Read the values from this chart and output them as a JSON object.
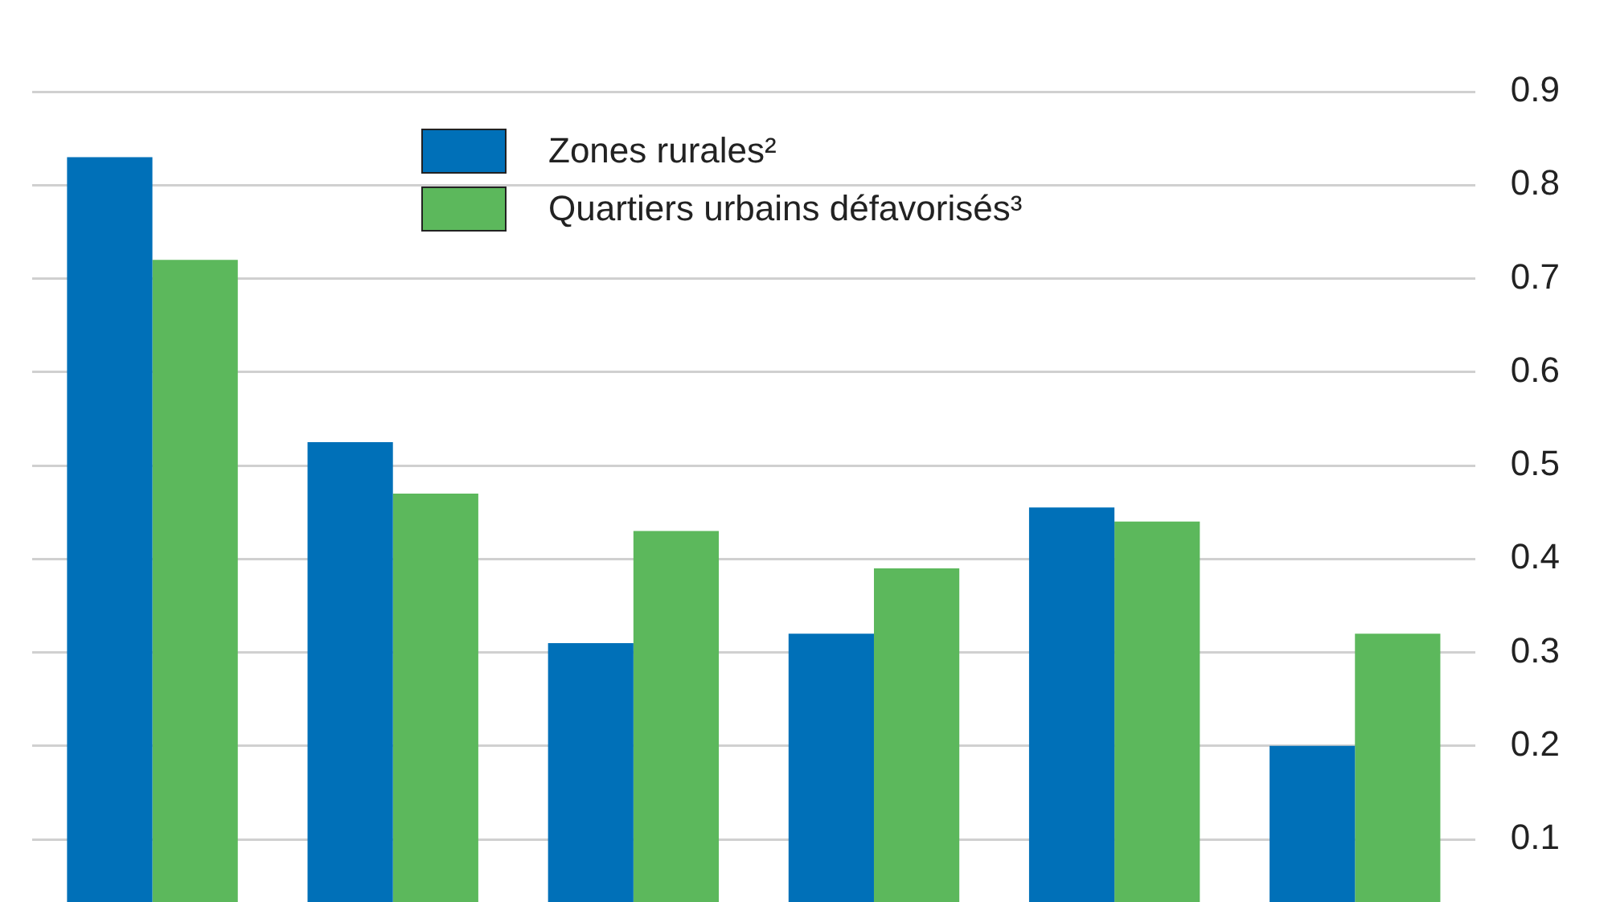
{
  "chart_data": {
    "type": "bar",
    "categories": [
      null,
      null,
      null,
      null,
      null,
      null
    ],
    "series": [
      {
        "name": "Zones rurales²",
        "color": "#0070b8",
        "values": [
          0.83,
          0.525,
          0.31,
          0.32,
          0.455,
          0.2
        ]
      },
      {
        "name": "Quartiers urbains défavorisés³",
        "color": "#5cb85c",
        "values": [
          0.72,
          0.47,
          0.43,
          0.39,
          0.44,
          0.32
        ]
      }
    ],
    "ylim": [
      0.1,
      0.9
    ],
    "yticks": [
      0.1,
      0.2,
      0.3,
      0.4,
      0.5,
      0.6,
      0.7,
      0.8,
      0.9
    ],
    "grid": "y",
    "legend": "top",
    "tick_labels": "y"
  }
}
